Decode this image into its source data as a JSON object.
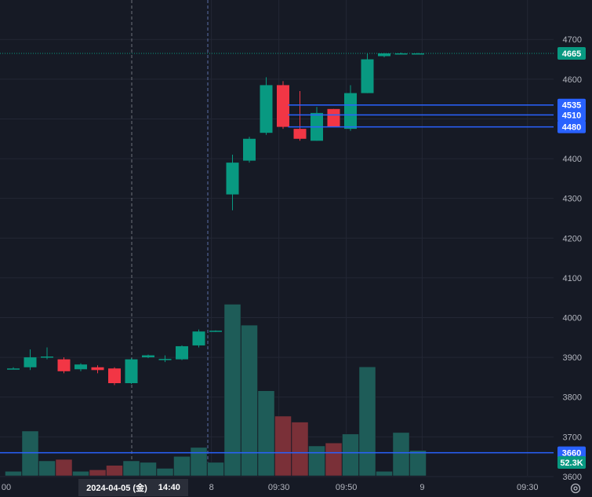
{
  "chart_data": {
    "type": "candlestick",
    "price_axis": {
      "range": [
        3590,
        4740
      ],
      "ticks": [
        "3600",
        "3700",
        "3800",
        "3900",
        "4000",
        "4100",
        "4200",
        "4300",
        "4400",
        "4500",
        "4600",
        "4700"
      ]
    },
    "time_axis": {
      "labels": [
        {
          "text": "00",
          "bar": -0.9
        },
        {
          "text": "8",
          "bar": 11.75
        },
        {
          "text": "09:30",
          "bar": 15.75
        },
        {
          "text": "09:50",
          "bar": 19.75
        },
        {
          "text": "9",
          "bar": 24.25
        },
        {
          "text": "09:30",
          "bar": 30.5
        }
      ]
    },
    "candles": [
      {
        "o": 3870,
        "h": 3875,
        "l": 3870,
        "c": 3872,
        "v": 3
      },
      {
        "o": 3875,
        "h": 3920,
        "l": 3868,
        "c": 3900,
        "v": 30
      },
      {
        "o": 3902,
        "h": 3925,
        "l": 3895,
        "c": 3902,
        "v": 10
      },
      {
        "o": 3895,
        "h": 3900,
        "l": 3860,
        "c": 3865,
        "v": 11
      },
      {
        "o": 3870,
        "h": 3885,
        "l": 3865,
        "c": 3882,
        "v": 3
      },
      {
        "o": 3875,
        "h": 3880,
        "l": 3860,
        "c": 3868,
        "v": 4
      },
      {
        "o": 3872,
        "h": 3875,
        "l": 3830,
        "c": 3835,
        "v": 7
      },
      {
        "o": 3835,
        "h": 3898,
        "l": 3833,
        "c": 3895,
        "v": 10
      },
      {
        "o": 3900,
        "h": 3907,
        "l": 3898,
        "c": 3905,
        "v": 9
      },
      {
        "o": 3893,
        "h": 3905,
        "l": 3888,
        "c": 3896,
        "v": 5
      },
      {
        "o": 3895,
        "h": 3930,
        "l": 3893,
        "c": 3928,
        "v": 13
      },
      {
        "o": 3930,
        "h": 3970,
        "l": 3925,
        "c": 3965,
        "v": 19
      },
      {
        "o": 3966,
        "h": 3968,
        "l": 3964,
        "c": 3967,
        "v": 9
      },
      {
        "o": 4310,
        "h": 4410,
        "l": 4270,
        "c": 4390,
        "v": 115
      },
      {
        "o": 4395,
        "h": 4455,
        "l": 4390,
        "c": 4450,
        "v": 101
      },
      {
        "o": 4465,
        "h": 4605,
        "l": 4460,
        "c": 4585,
        "v": 57
      },
      {
        "o": 4585,
        "h": 4595,
        "l": 4475,
        "c": 4480,
        "v": 40
      },
      {
        "o": 4475,
        "h": 4570,
        "l": 4445,
        "c": 4450,
        "v": 36
      },
      {
        "o": 4445,
        "h": 4530,
        "l": 4445,
        "c": 4515,
        "v": 20
      },
      {
        "o": 4525,
        "h": 4525,
        "l": 4480,
        "c": 4480,
        "v": 22
      },
      {
        "o": 4475,
        "h": 4585,
        "l": 4470,
        "c": 4565,
        "v": 28
      },
      {
        "o": 4565,
        "h": 4665,
        "l": 4565,
        "c": 4650,
        "v": 73
      },
      {
        "o": 4658,
        "h": 4666,
        "l": 4655,
        "c": 4665,
        "v": 3
      },
      {
        "o": 4665,
        "h": 4667,
        "l": 4663,
        "c": 4665,
        "v": 29
      },
      {
        "o": 4665,
        "h": 4666,
        "l": 4664,
        "c": 4665,
        "v": 17
      }
    ],
    "horizontal_lines": [
      {
        "price": 4535,
        "label": "4535",
        "start_bar": 16.3
      },
      {
        "price": 4510,
        "label": "4510",
        "start_bar": 16.3
      },
      {
        "price": 4480,
        "label": "4480",
        "start_bar": 16.3
      },
      {
        "price": 3660,
        "label": "3660",
        "start_bar": -1
      }
    ],
    "last_price": {
      "value": 4665,
      "label": "4665"
    },
    "volume_label": "52.3K",
    "crosshair": {
      "date": "2024-04-05 (金)",
      "time": "14:40"
    },
    "colors": {
      "up": "#089981",
      "down": "#f23645",
      "up_volume": "#1e5c58",
      "down_volume": "#7a3038",
      "line": "#2962ff",
      "background": "#161a25",
      "grid": "#232735"
    }
  }
}
